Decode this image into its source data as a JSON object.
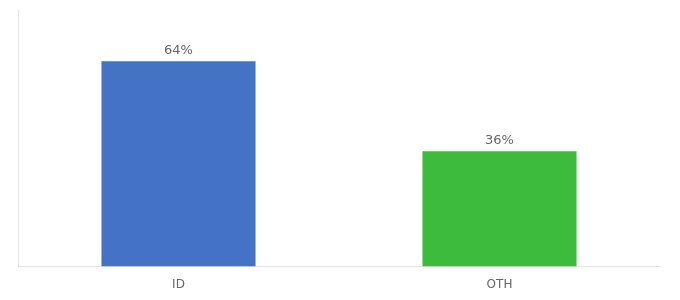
{
  "chart_data": {
    "type": "bar",
    "categories": [
      "ID",
      "OTH"
    ],
    "values": [
      64,
      36
    ],
    "value_labels": [
      "64%",
      "36%"
    ],
    "colors": [
      "#4472c4",
      "#3dbb3d"
    ],
    "data_labels": true,
    "ylim": [
      0,
      80
    ],
    "grid": false,
    "tick_labels": "x"
  }
}
